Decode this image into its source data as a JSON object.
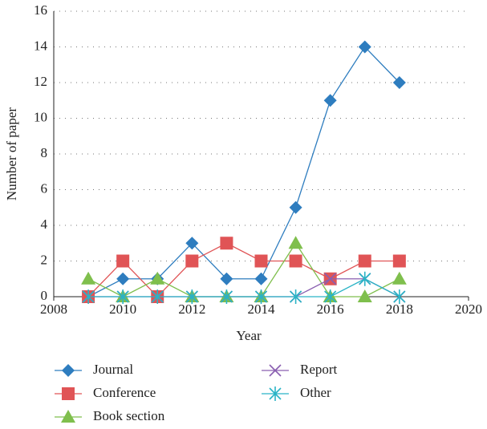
{
  "chart_data": {
    "type": "line",
    "x_label": "Year",
    "y_label": "Number of paper",
    "x": [
      2009,
      2010,
      2011,
      2012,
      2013,
      2014,
      2015,
      2016,
      2017,
      2018
    ],
    "series": [
      {
        "name": "Journal",
        "color": "#2e7dbf",
        "marker": "diamond",
        "values": [
          0,
          1,
          1,
          3,
          1,
          1,
          5,
          11,
          14,
          12
        ]
      },
      {
        "name": "Conference",
        "color": "#e05456",
        "marker": "square",
        "values": [
          0,
          2,
          0,
          2,
          3,
          2,
          2,
          1,
          2,
          2
        ]
      },
      {
        "name": "Book section",
        "color": "#7fbf4d",
        "marker": "triangle",
        "values": [
          1,
          0,
          1,
          0,
          0,
          0,
          3,
          0,
          0,
          1
        ]
      },
      {
        "name": "Report",
        "color": "#8a5fb0",
        "marker": "x",
        "values": [
          0,
          0,
          0,
          0,
          0,
          0,
          0,
          1,
          1,
          0
        ]
      },
      {
        "name": "Other",
        "color": "#2ab4c6",
        "marker": "asterisk",
        "values": [
          0,
          0,
          0,
          0,
          0,
          0,
          0,
          0,
          1,
          0
        ]
      }
    ],
    "xlim": [
      2008,
      2020
    ],
    "xticks": [
      2008,
      2010,
      2012,
      2014,
      2016,
      2018,
      2020
    ],
    "ylim": [
      0,
      16
    ],
    "yticks": [
      0,
      2,
      4,
      6,
      8,
      10,
      12,
      14,
      16
    ],
    "grid": true,
    "legend": "bottom"
  }
}
